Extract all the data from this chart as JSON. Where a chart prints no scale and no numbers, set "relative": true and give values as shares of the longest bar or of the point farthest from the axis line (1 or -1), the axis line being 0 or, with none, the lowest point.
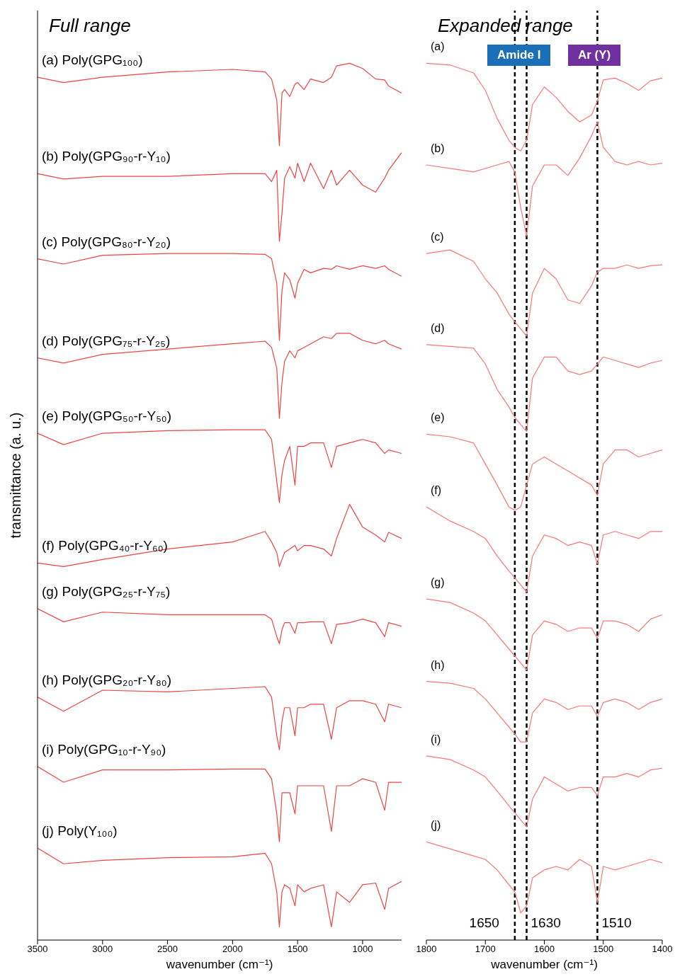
{
  "chart_data": [
    {
      "type": "line",
      "title": "Full range",
      "xlabel": "wavenumber (cm⁻¹)",
      "ylabel": "transmittance (a. u.)",
      "relative": true,
      "xlim": [
        3500,
        700
      ],
      "xticks": [
        3500,
        3000,
        2500,
        2000,
        1500,
        1000
      ],
      "x": [
        3500,
        3300,
        3000,
        2500,
        2000,
        1750,
        1700,
        1660,
        1640,
        1620,
        1600,
        1560,
        1520,
        1500,
        1450,
        1400,
        1300,
        1240,
        1200,
        1100,
        1000,
        900,
        830,
        800,
        700
      ],
      "series": [
        {
          "name": "(a) Poly(GPG₁₀₀)",
          "color": "#ee4444",
          "values": [
            0.984,
            0.978,
            0.984,
            0.99,
            0.993,
            0.99,
            0.982,
            0.958,
            0.906,
            0.966,
            0.97,
            0.962,
            0.976,
            0.978,
            0.97,
            0.982,
            0.978,
            0.984,
            0.997,
            1.0,
            0.994,
            0.982,
            0.981,
            0.974,
            0.966
          ]
        },
        {
          "name": "(b) Poly(GPG₉₀-r-Y₁₀)",
          "color": "#ee4444",
          "values": [
            0.874,
            0.868,
            0.871,
            0.871,
            0.874,
            0.874,
            0.865,
            0.878,
            0.797,
            0.829,
            0.869,
            0.882,
            0.869,
            0.886,
            0.865,
            0.886,
            0.857,
            0.878,
            0.861,
            0.878,
            0.861,
            0.853,
            0.869,
            0.878,
            0.898
          ]
        },
        {
          "name": "(c) Poly(GPG₈₀-r-Y₂₀)",
          "color": "#ee4444",
          "values": [
            0.777,
            0.771,
            0.781,
            0.783,
            0.783,
            0.782,
            0.777,
            0.749,
            0.684,
            0.741,
            0.761,
            0.753,
            0.732,
            0.749,
            0.765,
            0.761,
            0.766,
            0.765,
            0.769,
            0.765,
            0.769,
            0.766,
            0.769,
            0.765,
            0.757
          ]
        },
        {
          "name": "(d) Poly(GPG₇₅-r-Y₂₅)",
          "color": "#ee4444",
          "values": [
            0.664,
            0.658,
            0.668,
            0.674,
            0.68,
            0.683,
            0.676,
            0.652,
            0.595,
            0.636,
            0.66,
            0.672,
            0.664,
            0.672,
            0.676,
            0.68,
            0.688,
            0.686,
            0.692,
            0.692,
            0.684,
            0.68,
            0.684,
            0.68,
            0.674
          ]
        },
        {
          "name": "(e) Poly(GPG₅₀-r-Y₅₀)",
          "color": "#ee4444",
          "values": [
            0.578,
            0.565,
            0.578,
            0.581,
            0.582,
            0.582,
            0.571,
            0.523,
            0.499,
            0.531,
            0.547,
            0.563,
            0.519,
            0.563,
            0.563,
            0.567,
            0.567,
            0.539,
            0.563,
            0.567,
            0.571,
            0.567,
            0.555,
            0.559,
            0.555
          ]
        },
        {
          "name": "(f) Poly(GPG₄₀-r-Y₆₀)",
          "color": "#ee4444",
          "values": [
            0.43,
            0.426,
            0.434,
            0.446,
            0.454,
            0.466,
            0.454,
            0.442,
            0.426,
            0.434,
            0.442,
            0.446,
            0.45,
            0.444,
            0.45,
            0.45,
            0.446,
            0.438,
            0.458,
            0.497,
            0.471,
            0.462,
            0.454,
            0.465,
            0.458
          ]
        },
        {
          "name": "(g) Poly(GPG₂₅-r-Y₇₅)",
          "color": "#ee4444",
          "values": [
            0.378,
            0.363,
            0.374,
            0.371,
            0.371,
            0.371,
            0.366,
            0.346,
            0.338,
            0.354,
            0.362,
            0.362,
            0.35,
            0.362,
            0.362,
            0.363,
            0.363,
            0.338,
            0.36,
            0.362,
            0.366,
            0.362,
            0.346,
            0.362,
            0.358
          ]
        },
        {
          "name": "(h) Poly(GPG₂₀-r-Y₈₀)",
          "color": "#ee4444",
          "values": [
            0.277,
            0.261,
            0.285,
            0.283,
            0.287,
            0.289,
            0.277,
            0.233,
            0.217,
            0.249,
            0.265,
            0.265,
            0.233,
            0.265,
            0.265,
            0.269,
            0.269,
            0.229,
            0.265,
            0.273,
            0.273,
            0.269,
            0.249,
            0.269,
            0.265
          ]
        },
        {
          "name": "(i) Poly(GPG₁₀-r-Y₉₀)",
          "color": "#ee4444",
          "values": [
            0.198,
            0.18,
            0.194,
            0.194,
            0.195,
            0.195,
            0.184,
            0.144,
            0.112,
            0.168,
            0.168,
            0.168,
            0.144,
            0.176,
            0.176,
            0.176,
            0.176,
            0.124,
            0.176,
            0.176,
            0.184,
            0.18,
            0.148,
            0.18,
            0.18
          ]
        },
        {
          "name": "(j) Poly(Y₁₀₀)",
          "color": "#ee4444",
          "values": [
            0.105,
            0.087,
            0.091,
            0.094,
            0.095,
            0.099,
            0.087,
            0.055,
            0.015,
            0.055,
            0.063,
            0.059,
            0.039,
            0.063,
            0.055,
            0.059,
            0.063,
            0.015,
            0.055,
            0.043,
            0.063,
            0.065,
            0.035,
            0.059,
            0.067
          ]
        }
      ]
    },
    {
      "type": "line",
      "title": "Expanded range",
      "xlabel": "wavenumber (cm⁻¹)",
      "relative": true,
      "xlim": [
        1800,
        1400
      ],
      "xticks": [
        1800,
        1700,
        1600,
        1500,
        1400
      ],
      "annotations": [
        "Amide I",
        "Ar (Y)"
      ],
      "ref_lines": [
        {
          "axis": "x",
          "value": 1650,
          "label": "1650",
          "color": "#000000",
          "line_style": "dashed"
        },
        {
          "axis": "x",
          "value": 1630,
          "label": "1630",
          "color": "#000000",
          "line_style": "dashed"
        },
        {
          "axis": "x",
          "value": 1510,
          "label": "1510",
          "color": "#000000",
          "line_style": "dashed"
        }
      ],
      "x": [
        1800,
        1760,
        1720,
        1700,
        1680,
        1660,
        1650,
        1640,
        1630,
        1620,
        1600,
        1580,
        1560,
        1540,
        1520,
        1510,
        1500,
        1480,
        1460,
        1440,
        1420,
        1400
      ],
      "series": [
        {
          "name": "(a)",
          "color": "#f87878",
          "values": [
            1.0,
            0.998,
            0.989,
            0.969,
            0.937,
            0.912,
            0.904,
            0.9,
            0.912,
            0.953,
            0.973,
            0.961,
            0.945,
            0.933,
            0.941,
            0.957,
            0.981,
            0.983,
            0.977,
            0.969,
            0.98,
            0.983
          ]
        },
        {
          "name": "(b)",
          "color": "#f87878",
          "values": [
            0.884,
            0.88,
            0.876,
            0.88,
            0.884,
            0.888,
            0.876,
            0.835,
            0.803,
            0.86,
            0.884,
            0.884,
            0.872,
            0.892,
            0.917,
            0.933,
            0.904,
            0.888,
            0.884,
            0.888,
            0.884,
            0.886
          ]
        },
        {
          "name": "(c)",
          "color": "#f87878",
          "values": [
            0.783,
            0.787,
            0.774,
            0.754,
            0.738,
            0.714,
            0.705,
            0.697,
            0.689,
            0.738,
            0.766,
            0.754,
            0.73,
            0.726,
            0.746,
            0.762,
            0.766,
            0.766,
            0.77,
            0.766,
            0.769,
            0.77
          ]
        },
        {
          "name": "(d)",
          "color": "#f87878",
          "values": [
            0.679,
            0.677,
            0.675,
            0.657,
            0.628,
            0.608,
            0.596,
            0.588,
            0.58,
            0.641,
            0.665,
            0.665,
            0.649,
            0.645,
            0.649,
            0.657,
            0.665,
            0.661,
            0.657,
            0.653,
            0.658,
            0.661
          ]
        },
        {
          "name": "(e)",
          "color": "#f87878",
          "values": [
            0.577,
            0.574,
            0.567,
            0.543,
            0.519,
            0.494,
            0.49,
            0.494,
            0.519,
            0.543,
            0.551,
            0.543,
            0.535,
            0.527,
            0.519,
            0.507,
            0.543,
            0.559,
            0.559,
            0.551,
            0.555,
            0.559
          ]
        },
        {
          "name": "(f)",
          "color": "#f87878",
          "values": [
            0.494,
            0.478,
            0.466,
            0.458,
            0.438,
            0.421,
            0.413,
            0.405,
            0.397,
            0.438,
            0.462,
            0.458,
            0.45,
            0.454,
            0.45,
            0.429,
            0.462,
            0.466,
            0.462,
            0.458,
            0.466,
            0.466
          ]
        },
        {
          "name": "(g)",
          "color": "#f87878",
          "values": [
            0.389,
            0.385,
            0.373,
            0.364,
            0.348,
            0.332,
            0.324,
            0.316,
            0.308,
            0.348,
            0.364,
            0.36,
            0.352,
            0.356,
            0.356,
            0.344,
            0.364,
            0.364,
            0.36,
            0.352,
            0.366,
            0.371
          ]
        },
        {
          "name": "(h)",
          "color": "#f87878",
          "values": [
            0.295,
            0.293,
            0.287,
            0.275,
            0.259,
            0.243,
            0.235,
            0.226,
            0.226,
            0.259,
            0.275,
            0.271,
            0.263,
            0.267,
            0.267,
            0.255,
            0.271,
            0.275,
            0.271,
            0.263,
            0.271,
            0.275
          ]
        },
        {
          "name": "(i)",
          "color": "#f87878",
          "values": [
            0.21,
            0.206,
            0.194,
            0.186,
            0.17,
            0.153,
            0.145,
            0.137,
            0.129,
            0.161,
            0.186,
            0.178,
            0.17,
            0.174,
            0.174,
            0.165,
            0.186,
            0.186,
            0.19,
            0.186,
            0.194,
            0.196
          ]
        },
        {
          "name": "(j)",
          "color": "#f87878",
          "values": [
            0.112,
            0.104,
            0.096,
            0.092,
            0.08,
            0.063,
            0.055,
            0.031,
            0.039,
            0.071,
            0.08,
            0.084,
            0.08,
            0.092,
            0.084,
            0.043,
            0.084,
            0.08,
            0.084,
            0.088,
            0.092,
            0.088
          ]
        }
      ]
    }
  ]
}
